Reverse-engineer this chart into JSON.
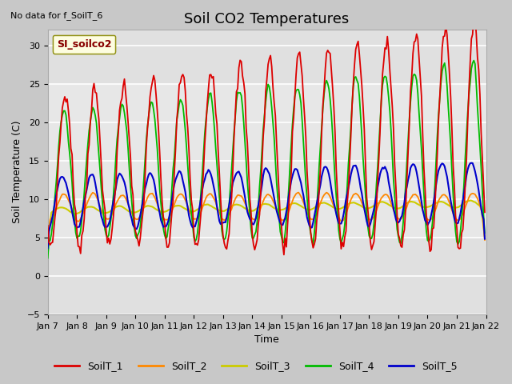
{
  "title": "Soil CO2 Temperatures",
  "xlabel": "Time",
  "ylabel": "Soil Temperature (C)",
  "note": "No data for f_SoilT_6",
  "legend_label": "SI_soilco2",
  "ylim": [
    -5,
    32
  ],
  "yticks": [
    -5,
    0,
    5,
    10,
    15,
    20,
    25,
    30
  ],
  "series_colors": {
    "SoilT_1": "#dd0000",
    "SoilT_2": "#ff8800",
    "SoilT_3": "#cccc00",
    "SoilT_4": "#00bb00",
    "SoilT_5": "#0000cc"
  },
  "fig_facecolor": "#c8c8c8",
  "plot_facecolor": "#e0e0e0",
  "grid_color": "#ffffff",
  "title_fontsize": 13,
  "axis_fontsize": 9,
  "tick_fontsize": 8,
  "legend_fontsize": 9,
  "linewidth": 1.3
}
